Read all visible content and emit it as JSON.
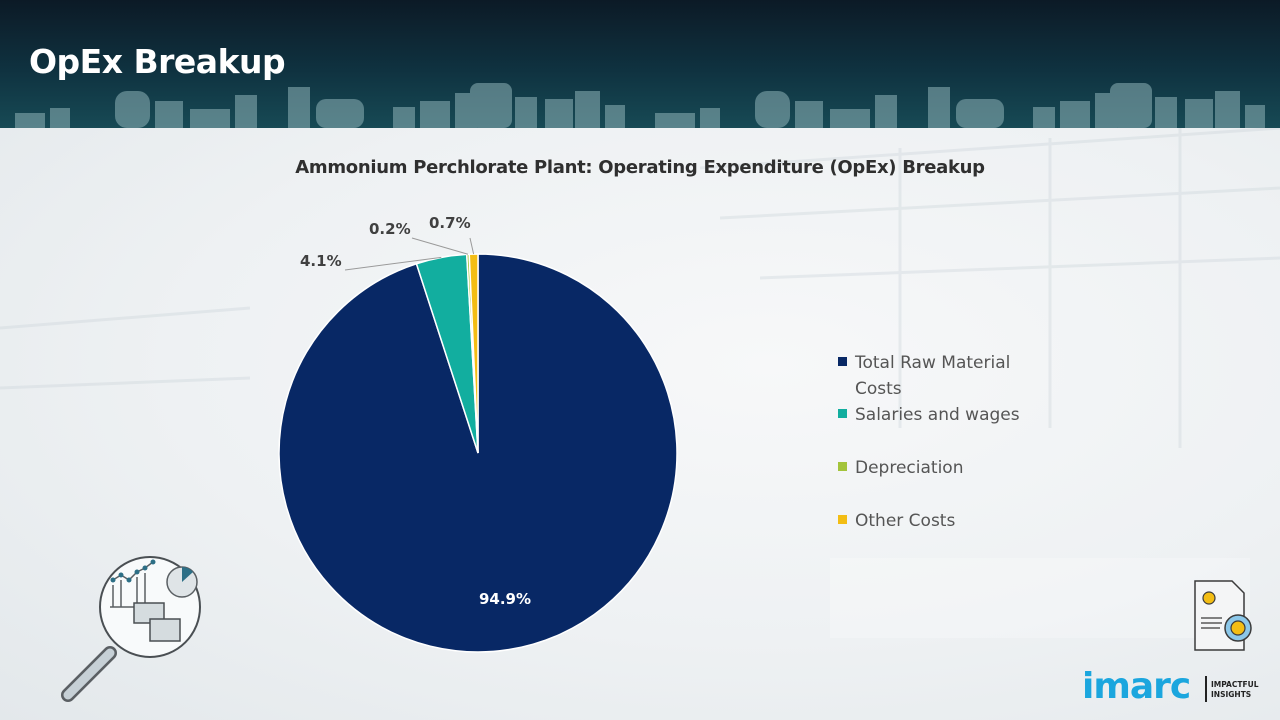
{
  "header": {
    "title": "OpEx Breakup"
  },
  "chart_data": {
    "type": "pie",
    "title": "Ammonium Perchlorate Plant: Operating Expenditure (OpEx) Breakup",
    "categories": [
      "Total Raw Material Costs",
      "Salaries and wages",
      "Depreciation",
      "Other Costs"
    ],
    "values": [
      94.9,
      4.1,
      0.2,
      0.7
    ],
    "data_labels": [
      "94.9%",
      "4.1%",
      "0.2%",
      "0.7%"
    ],
    "colors": [
      "#082865",
      "#12ae9f",
      "#a3c43b",
      "#f3bd14"
    ],
    "start_angle": "12 o'clock",
    "direction": "clockwise",
    "legend_position": "right"
  },
  "legend": {
    "items": [
      {
        "label": "Total Raw Material Costs",
        "color": "#082865"
      },
      {
        "label": "Salaries and wages",
        "color": "#12ae9f"
      },
      {
        "label": "Depreciation",
        "color": "#a3c43b"
      },
      {
        "label": "Other Costs",
        "color": "#f3bd14"
      }
    ]
  },
  "branding": {
    "logo_text": "imarc",
    "logo_tagline": "IMPACTFUL INSIGHTS",
    "logo_color": "#1ba6de"
  }
}
